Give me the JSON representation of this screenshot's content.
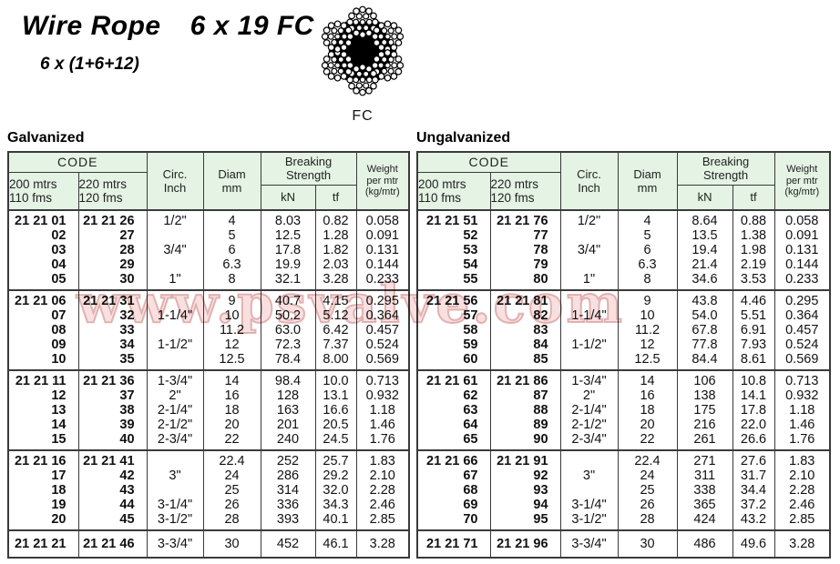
{
  "header": {
    "title_main": "Wire Rope",
    "title_spec": "6 x 19 FC",
    "subtitle": "6 x (1+6+12)",
    "rope_label": "FC"
  },
  "watermark": {
    "text": "www.psvalve.com"
  },
  "colors": {
    "table_header_bg": "#e4f3e3",
    "table_border": "#3a3a3a",
    "watermark_pink": "#eeb2b2"
  },
  "tables": [
    {
      "title": "Galvanized",
      "header": {
        "code": "CODE",
        "code_col1": "200 mtrs\n110 fms",
        "code_col2": "220 mtrs\n120 fms",
        "circ": "Circ.\nInch",
        "diam": "Diam\nmm",
        "breaking": "Breaking\nStrength",
        "kn": "kN",
        "tf": "tf",
        "weight": "Weight\nper mtr\n(kg/mtr)"
      },
      "blocks": [
        [
          [
            "21 21 01",
            "21 21 26",
            "1/2\"",
            "4",
            "8.03",
            "0.82",
            "0.058"
          ],
          [
            "02",
            "27",
            "",
            "5",
            "12.5",
            "1.28",
            "0.091"
          ],
          [
            "03",
            "28",
            "3/4\"",
            "6",
            "17.8",
            "1.82",
            "0.131"
          ],
          [
            "04",
            "29",
            "",
            "6.3",
            "19.9",
            "2.03",
            "0.144"
          ],
          [
            "05",
            "30",
            "1\"",
            "8",
            "32.1",
            "3.28",
            "0.233"
          ]
        ],
        [
          [
            "21 21 06",
            "21 21 31",
            "",
            "9",
            "40.7",
            "4.15",
            "0.295"
          ],
          [
            "07",
            "32",
            "1-1/4\"",
            "10",
            "50.2",
            "5.12",
            "0.364"
          ],
          [
            "08",
            "33",
            "",
            "11.2",
            "63.0",
            "6.42",
            "0.457"
          ],
          [
            "09",
            "34",
            "1-1/2\"",
            "12",
            "72.3",
            "7.37",
            "0.524"
          ],
          [
            "10",
            "35",
            "",
            "12.5",
            "78.4",
            "8.00",
            "0.569"
          ]
        ],
        [
          [
            "21 21 11",
            "21 21 36",
            "1-3/4\"",
            "14",
            "98.4",
            "10.0",
            "0.713"
          ],
          [
            "12",
            "37",
            "2\"",
            "16",
            "128",
            "13.1",
            "0.932"
          ],
          [
            "13",
            "38",
            "2-1/4\"",
            "18",
            "163",
            "16.6",
            "1.18"
          ],
          [
            "14",
            "39",
            "2-1/2\"",
            "20",
            "201",
            "20.5",
            "1.46"
          ],
          [
            "15",
            "40",
            "2-3/4\"",
            "22",
            "240",
            "24.5",
            "1.76"
          ]
        ],
        [
          [
            "21 21 16",
            "21 21 41",
            "",
            "22.4",
            "252",
            "25.7",
            "1.83"
          ],
          [
            "17",
            "42",
            "3\"",
            "24",
            "286",
            "29.2",
            "2.10"
          ],
          [
            "18",
            "43",
            "",
            "25",
            "314",
            "32.0",
            "2.28"
          ],
          [
            "19",
            "44",
            "3-1/4\"",
            "26",
            "336",
            "34.3",
            "2.46"
          ],
          [
            "20",
            "45",
            "3-1/2\"",
            "28",
            "393",
            "40.1",
            "2.85"
          ]
        ],
        [
          [
            "21 21 21",
            "21 21 46",
            "3-3/4\"",
            "30",
            "452",
            "46.1",
            "3.28"
          ]
        ]
      ]
    },
    {
      "title": "Ungalvanized",
      "header": {
        "code": "CODE",
        "code_col1": "200 mtrs\n110 fms",
        "code_col2": "220 mtrs\n120 fms",
        "circ": "Circ.\nInch",
        "diam": "Diam\nmm",
        "breaking": "Breaking\nStrength",
        "kn": "kN",
        "tf": "tf",
        "weight": "Weight\nper mtr\n(kg/mtr)"
      },
      "blocks": [
        [
          [
            "21 21 51",
            "21 21 76",
            "1/2\"",
            "4",
            "8.64",
            "0.88",
            "0.058"
          ],
          [
            "52",
            "77",
            "",
            "5",
            "13.5",
            "1.38",
            "0.091"
          ],
          [
            "53",
            "78",
            "3/4\"",
            "6",
            "19.4",
            "1.98",
            "0.131"
          ],
          [
            "54",
            "79",
            "",
            "6.3",
            "21.4",
            "2.19",
            "0.144"
          ],
          [
            "55",
            "80",
            "1\"",
            "8",
            "34.6",
            "3.53",
            "0.233"
          ]
        ],
        [
          [
            "21 21 56",
            "21 21 81",
            "",
            "9",
            "43.8",
            "4.46",
            "0.295"
          ],
          [
            "57",
            "82",
            "1-1/4\"",
            "10",
            "54.0",
            "5.51",
            "0.364"
          ],
          [
            "58",
            "83",
            "",
            "11.2",
            "67.8",
            "6.91",
            "0.457"
          ],
          [
            "59",
            "84",
            "1-1/2\"",
            "12",
            "77.8",
            "7.93",
            "0.524"
          ],
          [
            "60",
            "85",
            "",
            "12.5",
            "84.4",
            "8.61",
            "0.569"
          ]
        ],
        [
          [
            "21 21 61",
            "21 21 86",
            "1-3/4\"",
            "14",
            "106",
            "10.8",
            "0.713"
          ],
          [
            "62",
            "87",
            "2\"",
            "16",
            "138",
            "14.1",
            "0.932"
          ],
          [
            "63",
            "88",
            "2-1/4\"",
            "18",
            "175",
            "17.8",
            "1.18"
          ],
          [
            "64",
            "89",
            "2-1/2\"",
            "20",
            "216",
            "22.0",
            "1.46"
          ],
          [
            "65",
            "90",
            "2-3/4\"",
            "22",
            "261",
            "26.6",
            "1.76"
          ]
        ],
        [
          [
            "21 21 66",
            "21 21 91",
            "",
            "22.4",
            "271",
            "27.6",
            "1.83"
          ],
          [
            "67",
            "92",
            "3\"",
            "24",
            "311",
            "31.7",
            "2.10"
          ],
          [
            "68",
            "93",
            "",
            "25",
            "338",
            "34.4",
            "2.28"
          ],
          [
            "69",
            "94",
            "3-1/4\"",
            "26",
            "365",
            "37.2",
            "2.46"
          ],
          [
            "70",
            "95",
            "3-1/2\"",
            "28",
            "424",
            "43.2",
            "2.85"
          ]
        ],
        [
          [
            "21 21 71",
            "21 21 96",
            "3-3/4\"",
            "30",
            "486",
            "49.6",
            "3.28"
          ]
        ]
      ]
    }
  ]
}
